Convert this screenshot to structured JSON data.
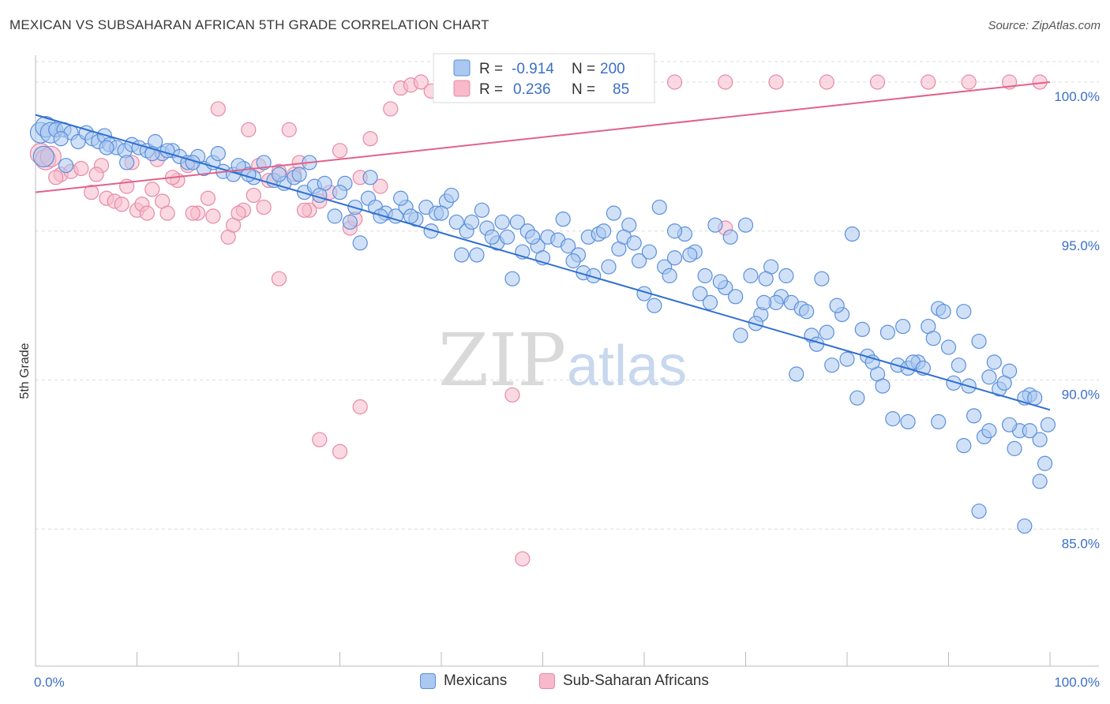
{
  "header": {
    "title": "MEXICAN VS SUBSAHARAN AFRICAN 5TH GRADE CORRELATION CHART",
    "source": "Source: ZipAtlas.com"
  },
  "watermark": {
    "zip": "ZIP",
    "atlas": "atlas"
  },
  "colors": {
    "blue_fill": "#aac8f0",
    "blue_stroke": "#5b8fdc",
    "blue_line": "#2f6fd0",
    "pink_fill": "#f7b9cb",
    "pink_stroke": "#e68aa6",
    "pink_line": "#e0628a",
    "tick": "#3b6fc8",
    "grid": "#dcdcdc"
  },
  "legend": {
    "rows": [
      {
        "r_label": "R =",
        "r_value": "-0.914",
        "n_label": "N =",
        "n_value": "200"
      },
      {
        "r_label": "R =",
        "r_value": "0.236",
        "n_label": "N =",
        "n_value": "85"
      }
    ]
  },
  "bottom_legend": [
    "Mexicans",
    "Sub-Saharan Africans"
  ],
  "chart_data": {
    "type": "scatter",
    "title": "MEXICAN VS SUBSAHARAN AFRICAN 5TH GRADE CORRELATION CHART",
    "xlabel": "",
    "ylabel": "5th Grade",
    "xlim": [
      0,
      100
    ],
    "ylim": [
      80.4,
      100.9
    ],
    "x_tick_labels": [
      "0.0%",
      "100.0%"
    ],
    "y_ticks": [
      85,
      90,
      95,
      100
    ],
    "y_tick_labels": [
      "85.0%",
      "90.0%",
      "95.0%",
      "100.0%"
    ],
    "grid": true,
    "legend_position": "top-center",
    "series": [
      {
        "name": "Mexicans",
        "r": -0.914,
        "n": 200,
        "trend": {
          "x": [
            0,
            100
          ],
          "y": [
            98.9,
            89.0
          ]
        },
        "points": [
          [
            0.5,
            98.3
          ],
          [
            1.0,
            98.5
          ],
          [
            1.5,
            98.3
          ],
          [
            2.0,
            98.4
          ],
          [
            2.8,
            98.4
          ],
          [
            3.5,
            98.3
          ],
          [
            4.2,
            98.0
          ],
          [
            5.0,
            98.3
          ],
          [
            5.6,
            98.1
          ],
          [
            6.2,
            98.0
          ],
          [
            6.8,
            98.2
          ],
          [
            7.3,
            97.9
          ],
          [
            8.0,
            97.8
          ],
          [
            8.8,
            97.7
          ],
          [
            9.5,
            97.9
          ],
          [
            10.2,
            97.8
          ],
          [
            11.0,
            97.7
          ],
          [
            11.8,
            98.0
          ],
          [
            12.5,
            97.6
          ],
          [
            13.5,
            97.7
          ],
          [
            14.2,
            97.5
          ],
          [
            15.0,
            97.3
          ],
          [
            16.0,
            97.5
          ],
          [
            16.6,
            97.1
          ],
          [
            17.5,
            97.3
          ],
          [
            18.5,
            97.0
          ],
          [
            19.5,
            96.9
          ],
          [
            20.5,
            97.1
          ],
          [
            21.5,
            96.8
          ],
          [
            22.5,
            97.3
          ],
          [
            23.5,
            96.7
          ],
          [
            24.5,
            96.6
          ],
          [
            25.5,
            96.8
          ],
          [
            26.5,
            96.3
          ],
          [
            27.5,
            96.5
          ],
          [
            28.5,
            96.6
          ],
          [
            29.5,
            95.5
          ],
          [
            30.5,
            96.6
          ],
          [
            31.5,
            95.8
          ],
          [
            32.0,
            94.6
          ],
          [
            32.8,
            96.1
          ],
          [
            33.5,
            95.8
          ],
          [
            34.5,
            95.6
          ],
          [
            35.5,
            95.5
          ],
          [
            36.5,
            95.8
          ],
          [
            37.5,
            95.4
          ],
          [
            38.5,
            95.8
          ],
          [
            39.5,
            95.6
          ],
          [
            40.5,
            96.0
          ],
          [
            41.5,
            95.3
          ],
          [
            42.5,
            95.0
          ],
          [
            43.0,
            95.3
          ],
          [
            44.5,
            95.1
          ],
          [
            45.5,
            94.6
          ],
          [
            46.5,
            94.8
          ],
          [
            47.5,
            95.3
          ],
          [
            48.5,
            95.0
          ],
          [
            49.5,
            94.5
          ],
          [
            50.5,
            94.8
          ],
          [
            51.5,
            94.7
          ],
          [
            52.5,
            94.5
          ],
          [
            53.5,
            94.2
          ],
          [
            54.5,
            94.8
          ],
          [
            55.5,
            94.9
          ],
          [
            56.5,
            93.8
          ],
          [
            57.5,
            94.4
          ],
          [
            58.5,
            95.2
          ],
          [
            59.5,
            94.0
          ],
          [
            60.5,
            94.3
          ],
          [
            61.0,
            92.5
          ],
          [
            62.0,
            93.8
          ],
          [
            63.0,
            94.1
          ],
          [
            64.0,
            94.9
          ],
          [
            65.0,
            94.3
          ],
          [
            66.0,
            93.5
          ],
          [
            67.0,
            95.2
          ],
          [
            68.0,
            93.1
          ],
          [
            69.0,
            92.8
          ],
          [
            70.0,
            95.2
          ],
          [
            70.5,
            93.5
          ],
          [
            71.5,
            92.2
          ],
          [
            72.5,
            93.8
          ],
          [
            73.5,
            92.8
          ],
          [
            74.5,
            92.6
          ],
          [
            75.5,
            92.4
          ],
          [
            76.5,
            91.5
          ],
          [
            77.5,
            93.4
          ],
          [
            78.5,
            90.5
          ],
          [
            79.5,
            92.2
          ],
          [
            80.5,
            94.9
          ],
          [
            81.5,
            91.7
          ],
          [
            82.0,
            90.8
          ],
          [
            83.0,
            90.2
          ],
          [
            84.0,
            91.6
          ],
          [
            85.0,
            90.5
          ],
          [
            86.0,
            90.4
          ],
          [
            87.0,
            90.6
          ],
          [
            88.0,
            91.8
          ],
          [
            89.0,
            92.4
          ],
          [
            90.0,
            91.1
          ],
          [
            91.0,
            90.5
          ],
          [
            92.0,
            89.8
          ],
          [
            93.0,
            91.3
          ],
          [
            94.0,
            90.1
          ],
          [
            95.0,
            89.7
          ],
          [
            96.0,
            90.3
          ],
          [
            97.0,
            88.3
          ],
          [
            98.0,
            89.5
          ],
          [
            99.0,
            88.0
          ],
          [
            99.5,
            87.2
          ],
          [
            0.8,
            97.5
          ],
          [
            3.0,
            97.2
          ],
          [
            9.0,
            97.3
          ],
          [
            13.0,
            97.7
          ],
          [
            18.0,
            97.6
          ],
          [
            24.0,
            96.9
          ],
          [
            27.0,
            97.3
          ],
          [
            30.0,
            96.3
          ],
          [
            33.0,
            96.8
          ],
          [
            37.0,
            95.5
          ],
          [
            41.0,
            96.2
          ],
          [
            44.0,
            95.7
          ],
          [
            46.0,
            95.3
          ],
          [
            48.0,
            94.3
          ],
          [
            52.0,
            95.4
          ],
          [
            56.0,
            95.0
          ],
          [
            58.0,
            94.8
          ],
          [
            60.0,
            92.9
          ],
          [
            63.0,
            95.0
          ],
          [
            65.5,
            92.9
          ],
          [
            68.5,
            94.8
          ],
          [
            71.0,
            91.9
          ],
          [
            73.0,
            92.6
          ],
          [
            76.0,
            92.3
          ],
          [
            79.0,
            92.5
          ],
          [
            82.5,
            90.6
          ],
          [
            85.5,
            91.8
          ],
          [
            88.5,
            91.4
          ],
          [
            91.5,
            92.3
          ],
          [
            94.5,
            90.6
          ],
          [
            97.5,
            89.4
          ],
          [
            20.0,
            97.2
          ],
          [
            26.0,
            96.9
          ],
          [
            34.0,
            95.5
          ],
          [
            39.0,
            95.0
          ],
          [
            43.5,
            94.2
          ],
          [
            47.0,
            93.4
          ],
          [
            50.0,
            94.1
          ],
          [
            54.0,
            93.6
          ],
          [
            57.0,
            95.6
          ],
          [
            61.5,
            95.8
          ],
          [
            64.5,
            94.2
          ],
          [
            67.5,
            93.3
          ],
          [
            71.8,
            92.6
          ],
          [
            74.0,
            93.5
          ],
          [
            77.0,
            91.2
          ],
          [
            80.0,
            90.7
          ],
          [
            83.5,
            89.8
          ],
          [
            86.5,
            90.6
          ],
          [
            89.5,
            92.3
          ],
          [
            92.5,
            88.8
          ],
          [
            95.5,
            89.9
          ],
          [
            98.5,
            89.4
          ],
          [
            2.5,
            98.1
          ],
          [
            7.0,
            97.8
          ],
          [
            11.5,
            97.6
          ],
          [
            15.5,
            97.3
          ],
          [
            21.0,
            96.9
          ],
          [
            28.0,
            96.2
          ],
          [
            31.0,
            95.3
          ],
          [
            36.0,
            96.1
          ],
          [
            40.0,
            95.6
          ],
          [
            42.0,
            94.2
          ],
          [
            45.0,
            94.8
          ],
          [
            49.0,
            94.8
          ],
          [
            53.0,
            94.0
          ],
          [
            55.0,
            93.5
          ],
          [
            59.0,
            94.6
          ],
          [
            62.5,
            93.5
          ],
          [
            66.5,
            92.6
          ],
          [
            69.5,
            91.5
          ],
          [
            72.0,
            93.4
          ],
          [
            75.0,
            90.2
          ],
          [
            78.0,
            91.6
          ],
          [
            81.0,
            89.4
          ],
          [
            84.5,
            88.7
          ],
          [
            87.5,
            90.4
          ],
          [
            90.5,
            89.9
          ],
          [
            93.5,
            88.1
          ],
          [
            96.5,
            87.7
          ],
          [
            99.0,
            86.6
          ],
          [
            93.0,
            85.6
          ],
          [
            97.5,
            85.1
          ],
          [
            86.0,
            88.6
          ],
          [
            89.0,
            88.6
          ],
          [
            91.5,
            87.8
          ],
          [
            94.0,
            88.3
          ],
          [
            96.0,
            88.5
          ],
          [
            98.0,
            88.3
          ],
          [
            99.8,
            88.5
          ]
        ]
      },
      {
        "name": "Sub-Saharan Africans",
        "r": 0.236,
        "n": 85,
        "trend": {
          "x": [
            0,
            100
          ],
          "y": [
            96.3,
            100.0
          ]
        },
        "points": [
          [
            0.5,
            97.6
          ],
          [
            1.0,
            97.4
          ],
          [
            1.5,
            97.5
          ],
          [
            2.5,
            96.9
          ],
          [
            3.5,
            97.0
          ],
          [
            4.5,
            97.1
          ],
          [
            5.5,
            96.3
          ],
          [
            6.5,
            97.2
          ],
          [
            7.0,
            96.1
          ],
          [
            7.8,
            96.0
          ],
          [
            8.5,
            95.9
          ],
          [
            9.0,
            96.5
          ],
          [
            10.0,
            95.7
          ],
          [
            10.5,
            95.9
          ],
          [
            11.0,
            95.6
          ],
          [
            11.5,
            96.4
          ],
          [
            12.5,
            96.0
          ],
          [
            13.0,
            95.6
          ],
          [
            14.0,
            96.7
          ],
          [
            15.0,
            97.2
          ],
          [
            16.0,
            95.6
          ],
          [
            17.0,
            96.1
          ],
          [
            18.0,
            99.1
          ],
          [
            19.0,
            94.8
          ],
          [
            19.5,
            95.2
          ],
          [
            20.5,
            95.7
          ],
          [
            21.0,
            98.4
          ],
          [
            21.5,
            96.2
          ],
          [
            22.0,
            97.2
          ],
          [
            23.0,
            96.7
          ],
          [
            24.0,
            97.0
          ],
          [
            25.0,
            98.4
          ],
          [
            26.0,
            97.3
          ],
          [
            27.0,
            95.7
          ],
          [
            28.0,
            96.0
          ],
          [
            29.0,
            96.3
          ],
          [
            30.0,
            97.7
          ],
          [
            31.0,
            95.1
          ],
          [
            32.0,
            96.8
          ],
          [
            33.0,
            98.1
          ],
          [
            34.0,
            96.5
          ],
          [
            35.0,
            99.1
          ],
          [
            36.0,
            99.8
          ],
          [
            37.0,
            99.9
          ],
          [
            38.0,
            100.0
          ],
          [
            39.0,
            99.7
          ],
          [
            40.0,
            100.0
          ],
          [
            41.0,
            100.0
          ],
          [
            42.0,
            99.9
          ],
          [
            43.0,
            99.7
          ],
          [
            45.0,
            100.0
          ],
          [
            47.0,
            99.9
          ],
          [
            49.0,
            100.0
          ],
          [
            51.0,
            100.0
          ],
          [
            53.0,
            99.6
          ],
          [
            55.0,
            100.0
          ],
          [
            58.0,
            100.0
          ],
          [
            63.0,
            100.0
          ],
          [
            68.0,
            100.0
          ],
          [
            73.0,
            100.0
          ],
          [
            78.0,
            100.0
          ],
          [
            83.0,
            100.0
          ],
          [
            88.0,
            100.0
          ],
          [
            92.0,
            100.0
          ],
          [
            96.0,
            100.0
          ],
          [
            99.0,
            100.0
          ],
          [
            24.0,
            93.4
          ],
          [
            28.0,
            88.0
          ],
          [
            30.0,
            87.6
          ],
          [
            32.0,
            89.1
          ],
          [
            47.0,
            89.5
          ],
          [
            48.0,
            84.0
          ],
          [
            68.0,
            95.1
          ],
          [
            15.5,
            95.6
          ],
          [
            17.5,
            95.5
          ],
          [
            20.0,
            95.6
          ],
          [
            22.5,
            95.8
          ],
          [
            25.5,
            96.9
          ],
          [
            9.5,
            97.3
          ],
          [
            12.0,
            97.4
          ],
          [
            2.0,
            96.8
          ],
          [
            6.0,
            96.9
          ],
          [
            13.5,
            96.8
          ],
          [
            26.5,
            95.7
          ],
          [
            31.5,
            95.4
          ]
        ]
      }
    ]
  }
}
